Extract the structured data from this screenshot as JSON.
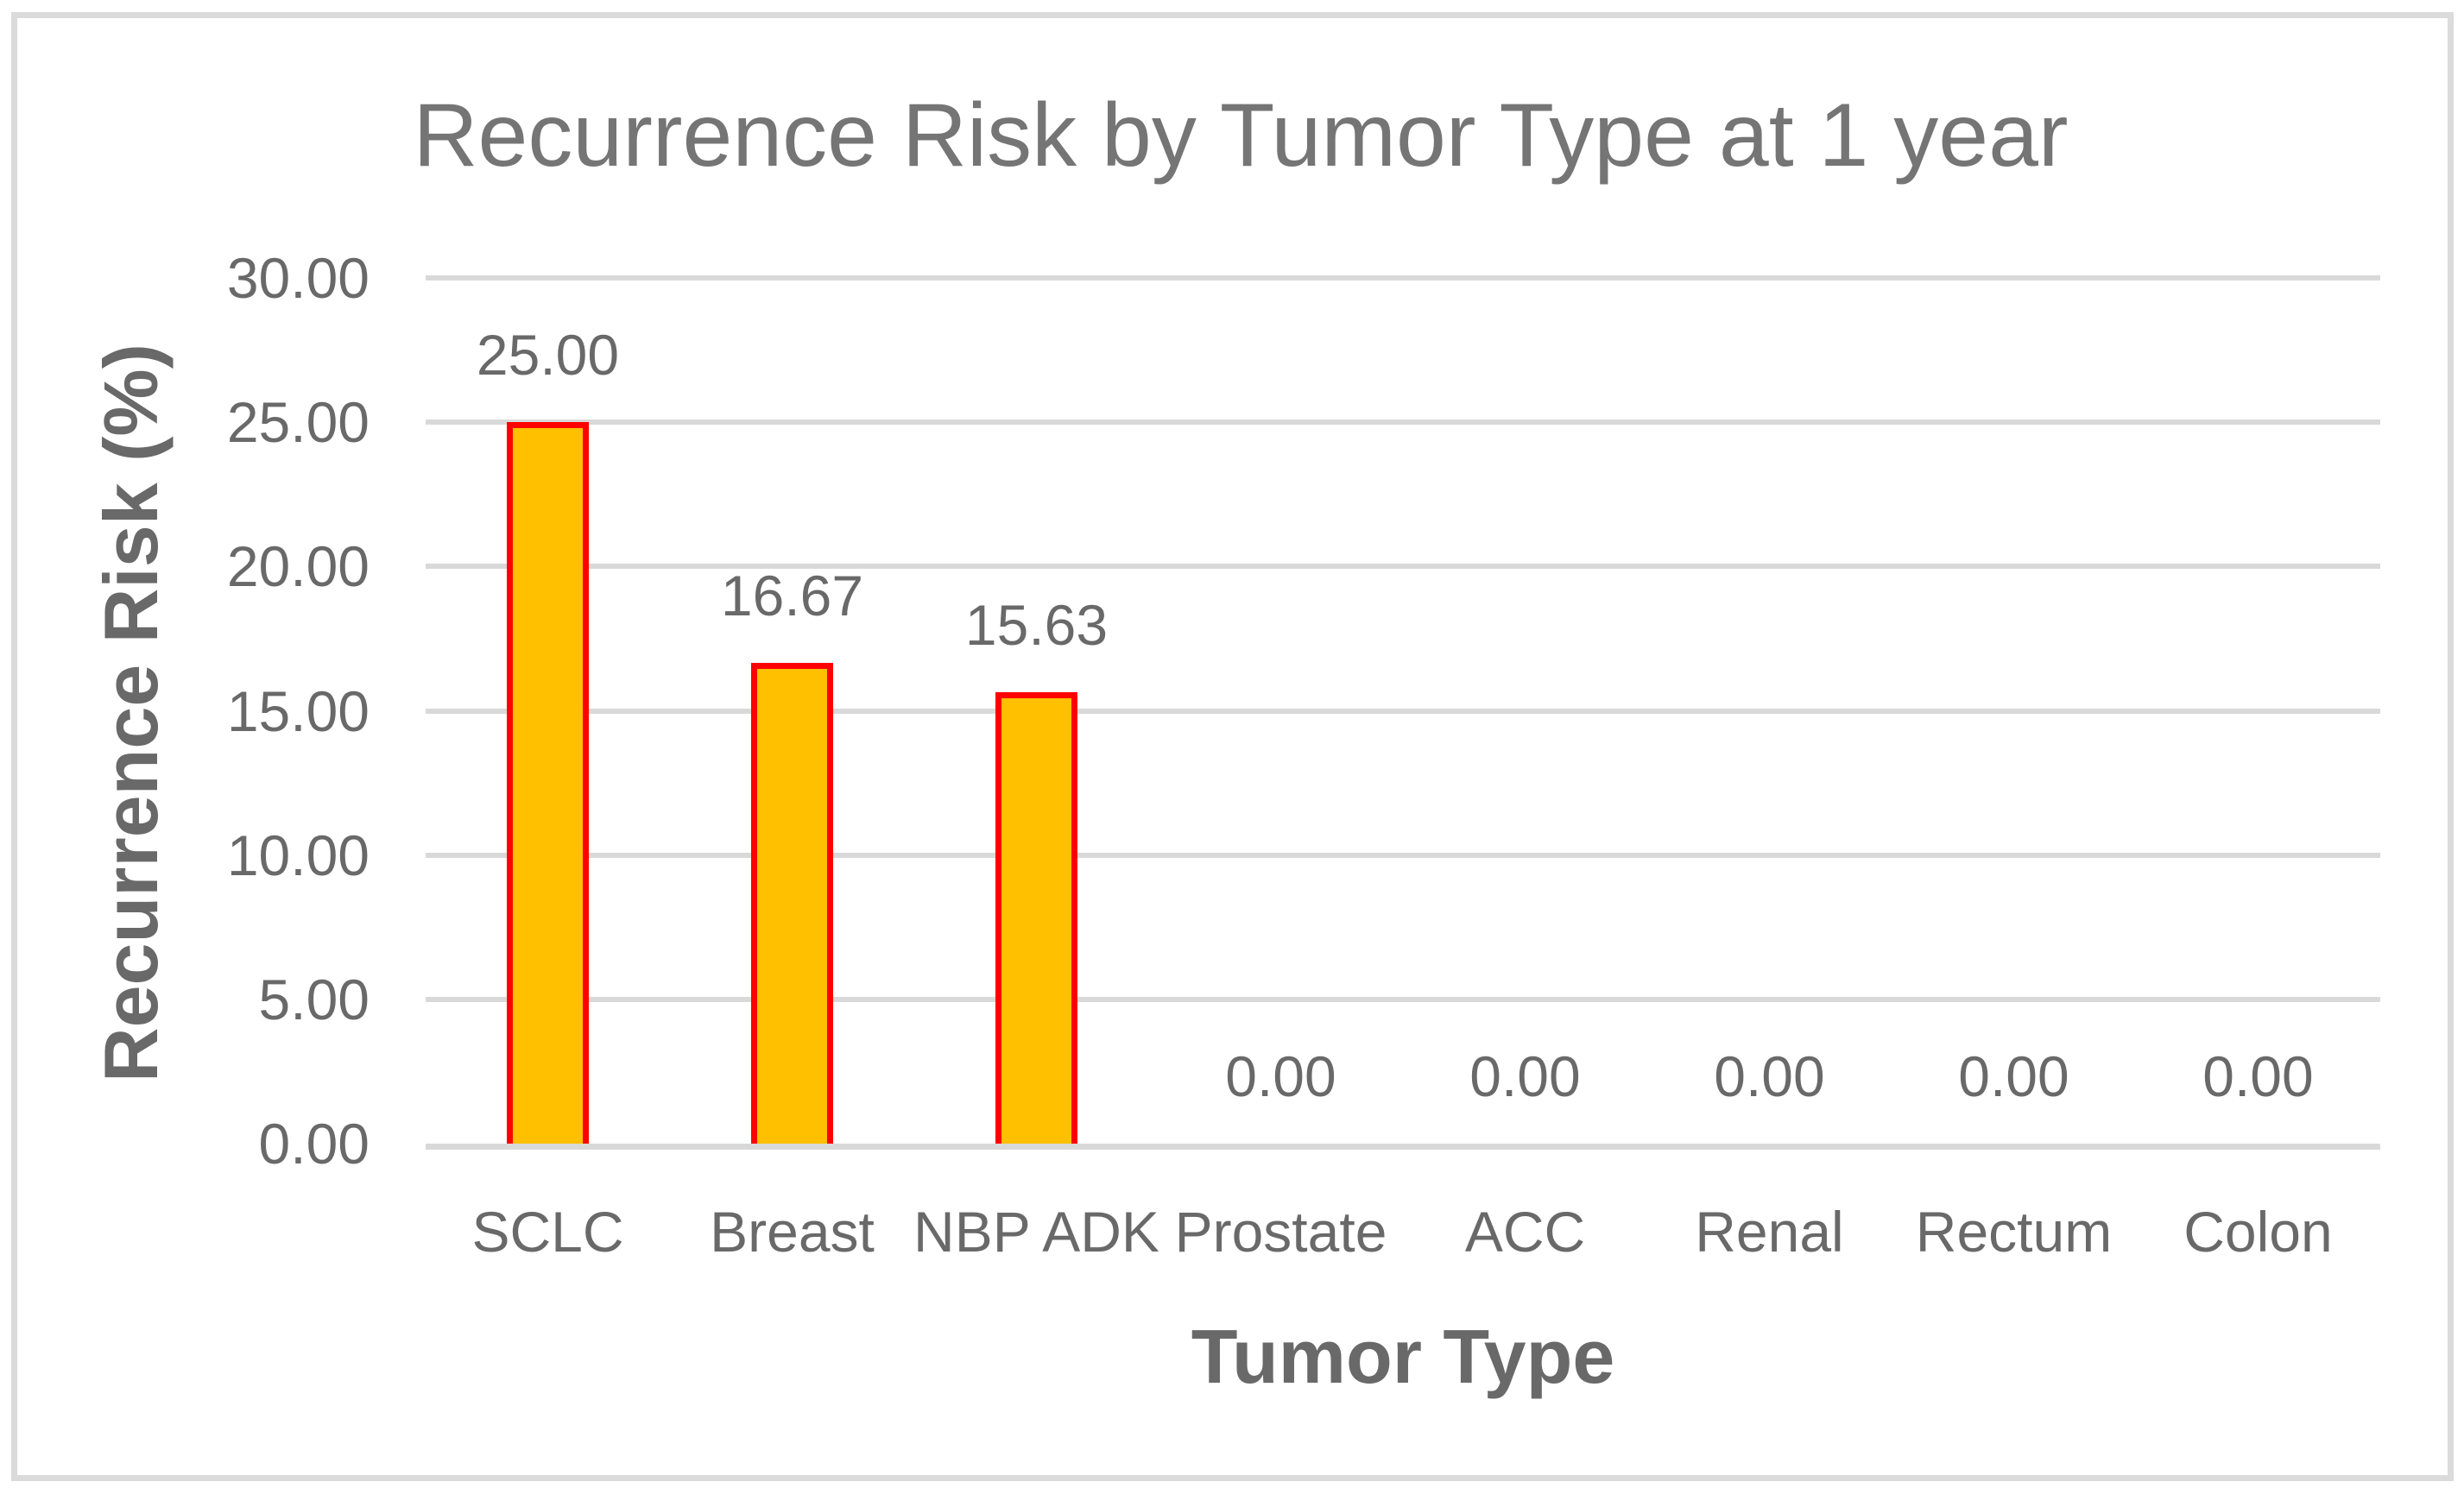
{
  "chart_data": {
    "type": "bar",
    "title": "Recurrence Risk by Tumor Type at 1 year",
    "xlabel": "Tumor Type",
    "ylabel": "Recurrence Risk (%)",
    "categories": [
      "SCLC",
      "Breast",
      "NBP ADK",
      "Prostate",
      "ACC",
      "Renal",
      "Rectum",
      "Colon"
    ],
    "values": [
      25.0,
      16.67,
      15.63,
      0.0,
      0.0,
      0.0,
      0.0,
      0.0
    ],
    "data_labels": [
      "25.00",
      "16.67",
      "15.63",
      "0.00",
      "0.00",
      "0.00",
      "0.00",
      "0.00"
    ],
    "series_name": "Recurrence Risk",
    "ylim": [
      0,
      30
    ],
    "ytick_step": 5,
    "ytick_labels": [
      "0.00",
      "5.00",
      "10.00",
      "15.00",
      "20.00",
      "25.00",
      "30.00"
    ],
    "grid": true,
    "legend": "none",
    "colors": {
      "bar_fill": "#FFC000",
      "bar_border": "#FF0000",
      "gridline": "#D9D9D9",
      "axis_line": "#D9D9D9",
      "tick_text": "#696969",
      "data_label_text": "#696969",
      "axis_title_text": "#696969",
      "title_text": "#757575",
      "frame_border": "#DBDBDB",
      "background": "#FFFFFF"
    }
  }
}
